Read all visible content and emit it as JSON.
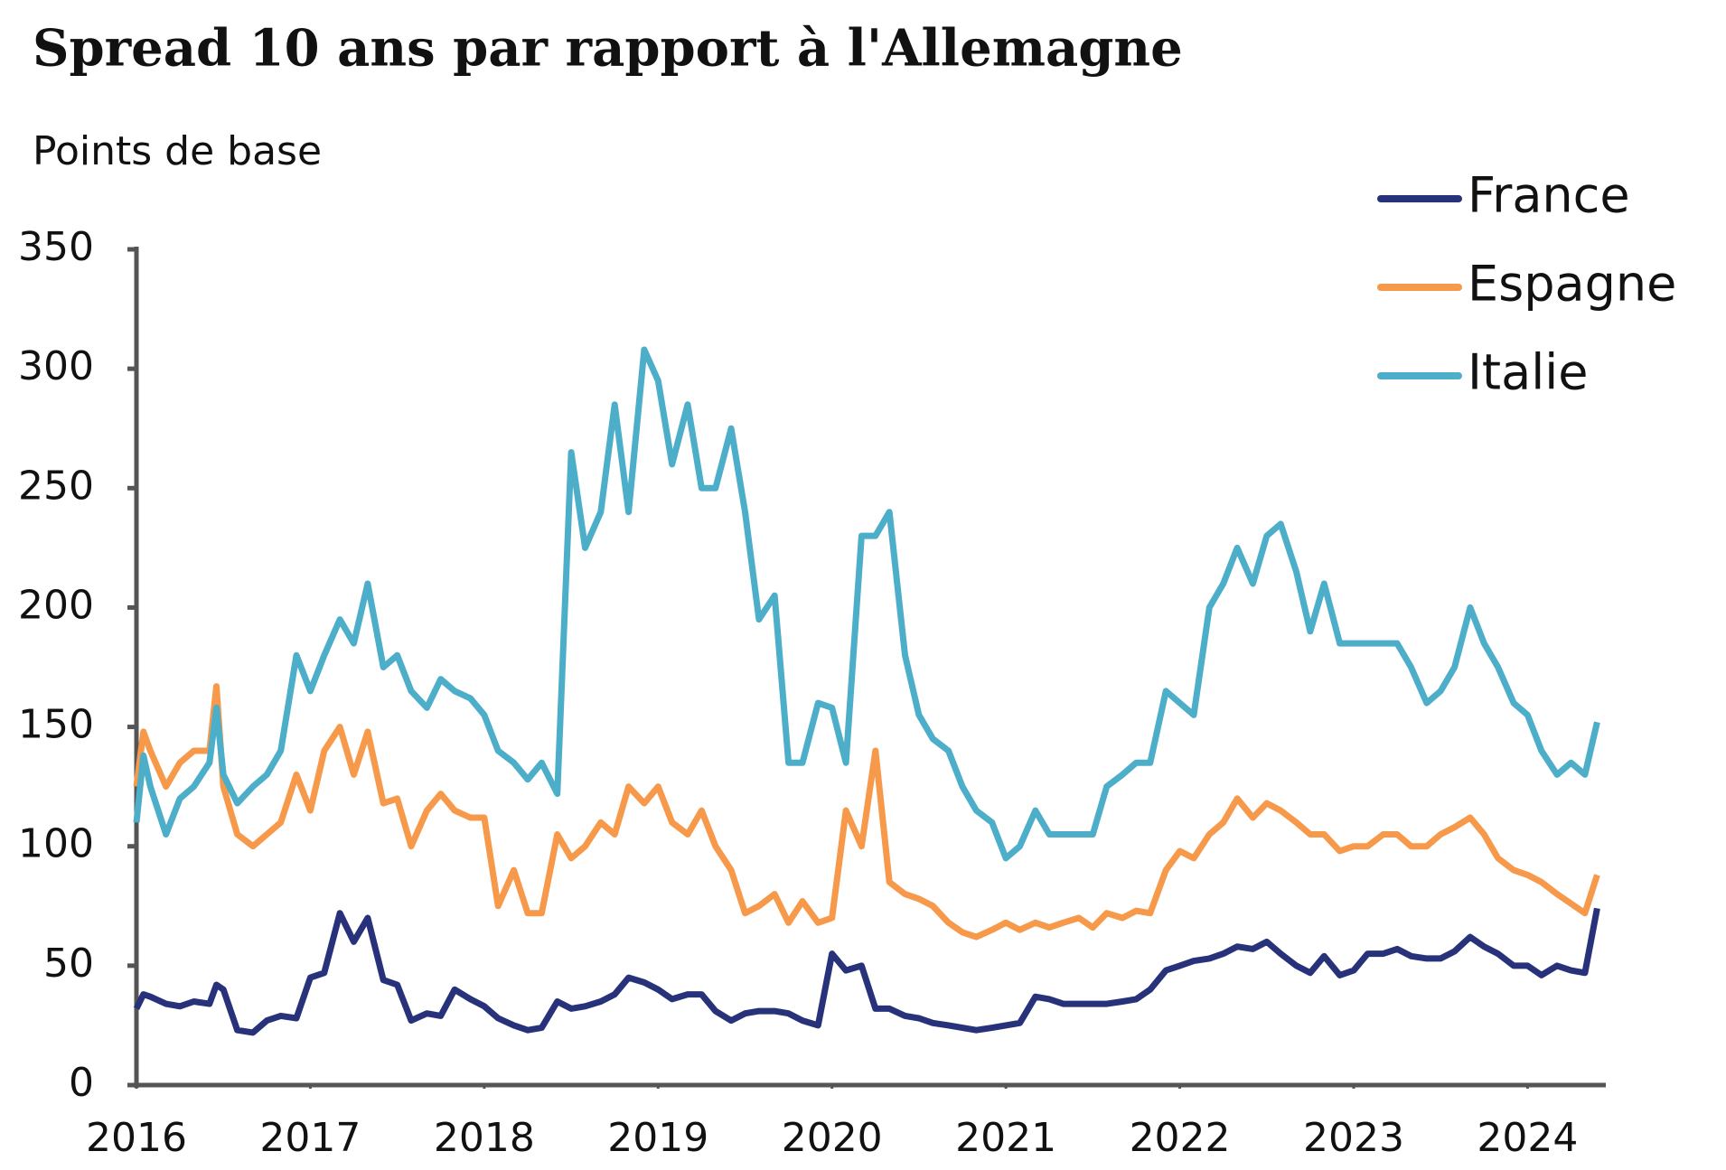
{
  "chart_data": {
    "type": "line",
    "title": "Spread 10 ans par rapport à l'Allemagne",
    "y_label": "Points de base",
    "x": [
      2016.0,
      2016.04,
      2016.08,
      2016.17,
      2016.25,
      2016.33,
      2016.42,
      2016.46,
      2016.5,
      2016.58,
      2016.67,
      2016.75,
      2016.83,
      2016.92,
      2017.0,
      2017.08,
      2017.17,
      2017.25,
      2017.33,
      2017.42,
      2017.5,
      2017.58,
      2017.67,
      2017.75,
      2017.83,
      2017.92,
      2018.0,
      2018.08,
      2018.17,
      2018.25,
      2018.33,
      2018.42,
      2018.5,
      2018.58,
      2018.67,
      2018.75,
      2018.83,
      2018.92,
      2019.0,
      2019.08,
      2019.17,
      2019.25,
      2019.33,
      2019.42,
      2019.5,
      2019.58,
      2019.67,
      2019.75,
      2019.83,
      2019.92,
      2020.0,
      2020.08,
      2020.17,
      2020.25,
      2020.33,
      2020.42,
      2020.5,
      2020.58,
      2020.67,
      2020.75,
      2020.83,
      2020.92,
      2021.0,
      2021.08,
      2021.17,
      2021.25,
      2021.33,
      2021.42,
      2021.5,
      2021.58,
      2021.67,
      2021.75,
      2021.83,
      2021.92,
      2022.0,
      2022.08,
      2022.17,
      2022.25,
      2022.33,
      2022.42,
      2022.5,
      2022.58,
      2022.67,
      2022.75,
      2022.83,
      2022.92,
      2023.0,
      2023.08,
      2023.17,
      2023.25,
      2023.33,
      2023.42,
      2023.5,
      2023.58,
      2023.67,
      2023.75,
      2023.83,
      2023.92,
      2024.0,
      2024.08,
      2024.17,
      2024.25,
      2024.33,
      2024.4
    ],
    "series": [
      {
        "name": "France",
        "color": "#27327a",
        "values": [
          32,
          38,
          37,
          34,
          33,
          35,
          34,
          42,
          40,
          23,
          22,
          27,
          29,
          28,
          45,
          47,
          72,
          60,
          70,
          44,
          42,
          27,
          30,
          29,
          40,
          36,
          33,
          28,
          25,
          23,
          24,
          35,
          32,
          33,
          35,
          38,
          45,
          43,
          40,
          36,
          38,
          38,
          31,
          27,
          30,
          31,
          31,
          30,
          27,
          25,
          55,
          48,
          50,
          32,
          32,
          29,
          28,
          26,
          25,
          24,
          23,
          24,
          25,
          26,
          37,
          36,
          34,
          34,
          34,
          34,
          35,
          36,
          40,
          48,
          50,
          52,
          53,
          55,
          58,
          57,
          60,
          55,
          50,
          47,
          54,
          46,
          48,
          55,
          55,
          57,
          54,
          53,
          53,
          56,
          62,
          58,
          55,
          50,
          50,
          46,
          50,
          48,
          47,
          74
        ]
      },
      {
        "name": "Espagne",
        "color": "#f7994a",
        "values": [
          125,
          148,
          140,
          125,
          135,
          140,
          140,
          167,
          125,
          105,
          100,
          105,
          110,
          130,
          115,
          140,
          150,
          130,
          148,
          118,
          120,
          100,
          115,
          122,
          115,
          112,
          112,
          75,
          90,
          72,
          72,
          105,
          95,
          100,
          110,
          105,
          125,
          118,
          125,
          110,
          105,
          115,
          100,
          90,
          72,
          75,
          80,
          68,
          77,
          68,
          70,
          115,
          100,
          140,
          85,
          80,
          78,
          75,
          68,
          64,
          62,
          65,
          68,
          65,
          68,
          66,
          68,
          70,
          66,
          72,
          70,
          73,
          72,
          90,
          98,
          95,
          105,
          110,
          120,
          112,
          118,
          115,
          110,
          105,
          105,
          98,
          100,
          100,
          105,
          105,
          100,
          100,
          105,
          108,
          112,
          105,
          95,
          90,
          88,
          85,
          80,
          76,
          72,
          88
        ]
      },
      {
        "name": "Italie",
        "color": "#4daec9",
        "values": [
          110,
          138,
          125,
          105,
          120,
          125,
          135,
          158,
          130,
          118,
          125,
          130,
          140,
          180,
          165,
          180,
          195,
          185,
          210,
          175,
          180,
          165,
          158,
          170,
          165,
          162,
          155,
          140,
          135,
          128,
          135,
          122,
          265,
          225,
          240,
          285,
          240,
          308,
          295,
          260,
          285,
          250,
          250,
          275,
          240,
          195,
          205,
          135,
          135,
          160,
          158,
          135,
          230,
          230,
          240,
          180,
          155,
          145,
          140,
          125,
          115,
          110,
          95,
          100,
          115,
          105,
          105,
          105,
          105,
          125,
          130,
          135,
          135,
          165,
          160,
          155,
          200,
          210,
          225,
          210,
          230,
          235,
          215,
          190,
          210,
          185,
          185,
          185,
          185,
          185,
          175,
          160,
          165,
          175,
          200,
          185,
          175,
          160,
          155,
          140,
          130,
          135,
          130,
          152
        ]
      }
    ],
    "xlim": [
      2016,
      2024.45
    ],
    "xticks": [
      2016,
      2017,
      2018,
      2019,
      2020,
      2021,
      2022,
      2023,
      2024
    ],
    "ylim": [
      0,
      350
    ],
    "yticks": [
      0,
      50,
      100,
      150,
      200,
      250,
      300,
      350
    ],
    "legend": "top-right",
    "grid": false
  }
}
